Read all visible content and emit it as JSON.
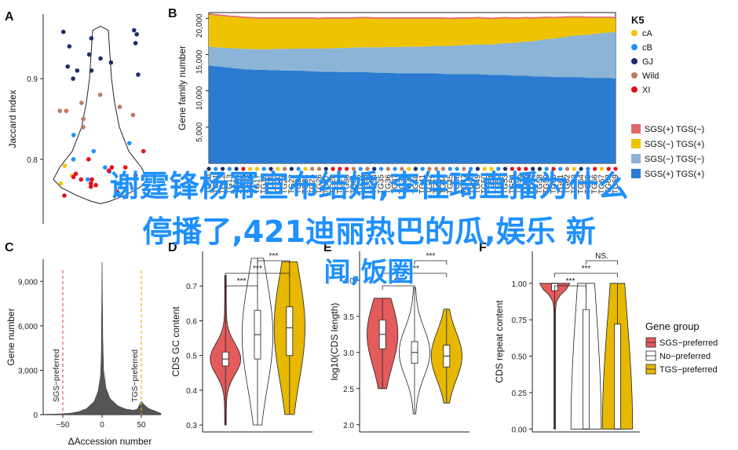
{
  "panel_letters": [
    "A",
    "B",
    "C",
    "D",
    "E",
    "F"
  ],
  "overlay_text": {
    "line1": "谢霆锋杨幂宣布结婚,李佳琦直播为什么",
    "line2": "停播了,421迪丽热巴的瓜,娱乐 新",
    "line3": "闻,饭圈"
  },
  "colors": {
    "cA": "#f2c500",
    "cB": "#1e90ff",
    "GJ": "#1f2d6b",
    "Wild": "#c07a63",
    "XI": "#e3101c",
    "sgs_plus_tgs_minus": "#e46a6a",
    "sgs_minus_tgs_plus": "#efc300",
    "sgs_minus_tgs_minus": "#8bb4d6",
    "sgs_plus_tgs_plus": "#2a7bd1",
    "sgs_preferred": "#e35b5b",
    "no_preferred": "#ffffff",
    "tgs_preferred": "#e6b800"
  },
  "chart_data": [
    {
      "panel": "A",
      "type": "scatter",
      "ylabel": "Jaccard index",
      "yticks": [
        "0.8",
        "0.9"
      ],
      "ylim": [
        0.72,
        0.98
      ],
      "legend_title": "K5",
      "legend": [
        "cA",
        "cB",
        "GJ",
        "Wild",
        "XI"
      ],
      "groups": [
        {
          "name": "GJ",
          "values": [
            0.96,
            0.955,
            0.958,
            0.95,
            0.944,
            0.94,
            0.93,
            0.925,
            0.92,
            0.91,
            0.915,
            0.905,
            0.91,
            0.9
          ]
        },
        {
          "name": "Wild",
          "values": [
            0.88,
            0.87,
            0.86,
            0.865,
            0.85,
            0.84,
            0.86,
            0.855
          ]
        },
        {
          "name": "cB",
          "values": [
            0.83,
            0.82,
            0.81,
            0.8,
            0.79,
            0.775,
            0.77,
            0.785
          ]
        },
        {
          "name": "cA",
          "values": [
            0.792,
            0.78,
            0.775,
            0.77
          ]
        },
        {
          "name": "XI",
          "values": [
            0.81,
            0.8,
            0.79,
            0.786,
            0.78,
            0.775,
            0.77,
            0.768,
            0.766,
            0.79,
            0.775,
            0.77,
            0.782,
            0.778,
            0.76,
            0.755
          ]
        }
      ]
    },
    {
      "panel": "B",
      "type": "area",
      "ylabel": "Gene family number",
      "yticks": [
        "5,000",
        "10,000",
        "15,000",
        "20,000"
      ],
      "ylim": [
        0,
        20800
      ],
      "x_count": 60,
      "x_tick_labels": [
        "TG10",
        "TG11",
        "TG12",
        "TG13",
        "TG14",
        "TG15",
        "TG16",
        "TG17",
        "TG18",
        "TG19",
        "TG20",
        "TG21",
        "TG22",
        "TG23",
        "TG24",
        "TG25",
        "TG26",
        "TG27",
        "TG28",
        "TG29",
        "TG30",
        "TG31",
        "TG32",
        "TG33",
        "TG34",
        "TG35",
        "TG36",
        "TG37",
        "TG38",
        "TG39",
        "TG40",
        "TG41",
        "TG42",
        "TG43",
        "TG44",
        "TG45",
        "TG46",
        "TG47",
        "TG48",
        "TG49",
        "TG50",
        "TG51",
        "TG52",
        "TG53",
        "TG54",
        "TG55",
        "TG56",
        "TG57",
        "TG58",
        "TG59",
        "TG60",
        "TG61",
        "TG62",
        "TG63",
        "TG64",
        "TG65",
        "TG66",
        "TG67",
        "TG68",
        "TG69"
      ],
      "stack_order": [
        "SGS(+) TGS(+)",
        "SGS(−) TGS(−)",
        "SGS(−) TGS(+)",
        "SGS(+) TGS(−)"
      ],
      "legend": [
        "SGS(+) TGS(−)",
        "SGS(−) TGS(+)",
        "SGS(−) TGS(−)",
        "SGS(+) TGS(+)"
      ],
      "series": [
        {
          "name": "SGS(+) TGS(+)",
          "values": [
            13500,
            13400,
            13300,
            13200,
            13100,
            13000,
            12950,
            12900,
            12900,
            12850,
            12850,
            12800,
            12800,
            12800,
            12750,
            12700,
            12650,
            12650,
            12650,
            12600,
            12600,
            12600,
            12600,
            12600,
            12500,
            12500,
            12500,
            12450,
            12400,
            12400,
            12400,
            12400,
            12400,
            12400,
            12350,
            12300,
            12300,
            12300,
            12300,
            12300,
            12250,
            12200,
            12200,
            12200,
            12100,
            12100,
            12100,
            12000,
            12000,
            12000,
            11900,
            11900,
            11900,
            11900,
            11900,
            11800,
            11800,
            11800,
            11800,
            11700
          ]
        },
        {
          "name": "SGS(−) TGS(−)",
          "values": [
            2600,
            2600,
            2650,
            2700,
            2750,
            2800,
            2800,
            2850,
            2850,
            2900,
            2950,
            3000,
            3000,
            3050,
            3100,
            3150,
            3200,
            3200,
            3250,
            3300,
            3350,
            3350,
            3400,
            3400,
            3500,
            3500,
            3550,
            3600,
            3650,
            3700,
            3700,
            3700,
            3750,
            3800,
            3850,
            3900,
            3950,
            4000,
            4050,
            4100,
            4150,
            4200,
            4300,
            4400,
            4500,
            4600,
            4700,
            4850,
            5000,
            5150,
            5300,
            5450,
            5600,
            5700,
            5800,
            5950,
            6050,
            6150,
            6250,
            6400
          ]
        },
        {
          "name": "SGS(−) TGS(+)",
          "values": [
            4400,
            4400,
            4350,
            4300,
            4300,
            4250,
            4250,
            4200,
            4200,
            4200,
            4150,
            4150,
            4150,
            4100,
            4100,
            4100,
            4050,
            4100,
            4050,
            4050,
            4000,
            4000,
            4000,
            4000,
            3950,
            3950,
            3900,
            3900,
            3900,
            3850,
            3850,
            3850,
            3800,
            3750,
            3750,
            3700,
            3700,
            3650,
            3600,
            3600,
            3550,
            3500,
            3450,
            3400,
            3350,
            3250,
            3200,
            3100,
            3000,
            2900,
            2800,
            2700,
            2600,
            2500,
            2400,
            2300,
            2200,
            2100,
            2000,
            1900
          ]
        },
        {
          "name": "SGS(+) TGS(−)",
          "values": [
            200,
            200,
            200,
            200,
            200,
            200,
            200,
            200,
            200,
            200,
            200,
            200,
            200,
            200,
            200,
            200,
            200,
            200,
            200,
            200,
            200,
            200,
            200,
            200,
            200,
            200,
            200,
            200,
            200,
            200,
            200,
            200,
            200,
            200,
            200,
            200,
            200,
            200,
            200,
            200,
            200,
            200,
            200,
            200,
            200,
            200,
            200,
            200,
            200,
            200,
            200,
            200,
            200,
            200,
            200,
            200,
            200,
            200,
            200,
            200
          ]
        }
      ]
    },
    {
      "panel": "C",
      "type": "area",
      "xlabel": "ΔAccession number",
      "ylabel": "Gene number",
      "xticks": [
        "−50",
        "0",
        "50"
      ],
      "yticks": [
        "0",
        "3,000",
        "6,000",
        "9,000"
      ],
      "xlim": [
        -75,
        75
      ],
      "ylim": [
        0,
        10500
      ],
      "annotations": [
        {
          "text": "SGS−preferred",
          "x": -50
        },
        {
          "text": "TGS−preferred",
          "x": 50
        }
      ],
      "x": [
        -75,
        -60,
        -50,
        -40,
        -30,
        -20,
        -10,
        -5,
        -2,
        -1,
        0,
        1,
        2,
        5,
        10,
        20,
        30,
        40,
        45,
        50,
        55,
        60,
        70,
        75
      ],
      "y": [
        20,
        40,
        60,
        100,
        200,
        400,
        900,
        1600,
        2600,
        4000,
        10300,
        5000,
        3000,
        1800,
        1100,
        600,
        380,
        300,
        380,
        900,
        600,
        400,
        200,
        80
      ]
    },
    {
      "panel": "D",
      "type": "violin",
      "ylabel": "CDS GC content",
      "yticks": [
        "0.3",
        "0.4",
        "0.5",
        "0.6",
        "0.7"
      ],
      "ylim": [
        0.28,
        0.8
      ],
      "groups": [
        {
          "name": "SGS−preferred",
          "median": 0.49,
          "q1": 0.47,
          "q3": 0.51,
          "min": 0.3,
          "max": 0.73
        },
        {
          "name": "No−preferred",
          "median": 0.56,
          "q1": 0.49,
          "q3": 0.63,
          "min": 0.3,
          "max": 0.78
        },
        {
          "name": "TGS−preferred",
          "median": 0.58,
          "q1": 0.5,
          "q3": 0.64,
          "min": 0.33,
          "max": 0.77
        }
      ],
      "significance": [
        {
          "pair": [
            1,
            2
          ],
          "label": "***"
        },
        {
          "pair": [
            1,
            3
          ],
          "label": "***"
        },
        {
          "pair": [
            2,
            3
          ],
          "label": "***"
        }
      ]
    },
    {
      "panel": "E",
      "type": "violin",
      "ylabel": "log10(CDS length)",
      "yticks": [
        "2.0",
        "2.5",
        "3.0",
        "3.5",
        "4.0"
      ],
      "ylim": [
        1.9,
        4.4
      ],
      "groups": [
        {
          "name": "SGS−preferred",
          "median": 3.25,
          "q1": 3.05,
          "q3": 3.45,
          "min": 2.5,
          "max": 3.75
        },
        {
          "name": "No−preferred",
          "median": 3.0,
          "q1": 2.85,
          "q3": 3.15,
          "min": 2.15,
          "max": 3.9
        },
        {
          "name": "TGS−preferred",
          "median": 2.95,
          "q1": 2.8,
          "q3": 3.1,
          "min": 2.3,
          "max": 3.6
        }
      ],
      "significance": [
        {
          "pair": [
            1,
            2
          ],
          "label": "***"
        },
        {
          "pair": [
            1,
            3
          ],
          "label": "***"
        },
        {
          "pair": [
            2,
            3
          ],
          "label": "***"
        }
      ]
    },
    {
      "panel": "F",
      "type": "violin",
      "ylabel": "CDS repeat content",
      "yticks": [
        "0.00",
        "0.25",
        "0.50",
        "0.75",
        "1.00"
      ],
      "ylim": [
        -0.02,
        1.22
      ],
      "groups": [
        {
          "name": "SGS−preferred",
          "median": 1.0,
          "q1": 0.95,
          "q3": 1.0,
          "min": 0.0,
          "max": 1.0
        },
        {
          "name": "No−preferred",
          "median": 0.0,
          "q1": 0.0,
          "q3": 0.82,
          "min": 0.0,
          "max": 1.0
        },
        {
          "name": "TGS−preferred",
          "median": 0.0,
          "q1": 0.0,
          "q3": 0.72,
          "min": 0.0,
          "max": 1.0
        }
      ],
      "significance": [
        {
          "pair": [
            1,
            2
          ],
          "label": "***"
        },
        {
          "pair": [
            1,
            3
          ],
          "label": "***"
        },
        {
          "pair": [
            2,
            3
          ],
          "label": "NS."
        }
      ],
      "legend_title": "Gene group",
      "legend": [
        "SGS−preferred",
        "No−preferred",
        "TGS−preferred"
      ]
    }
  ]
}
